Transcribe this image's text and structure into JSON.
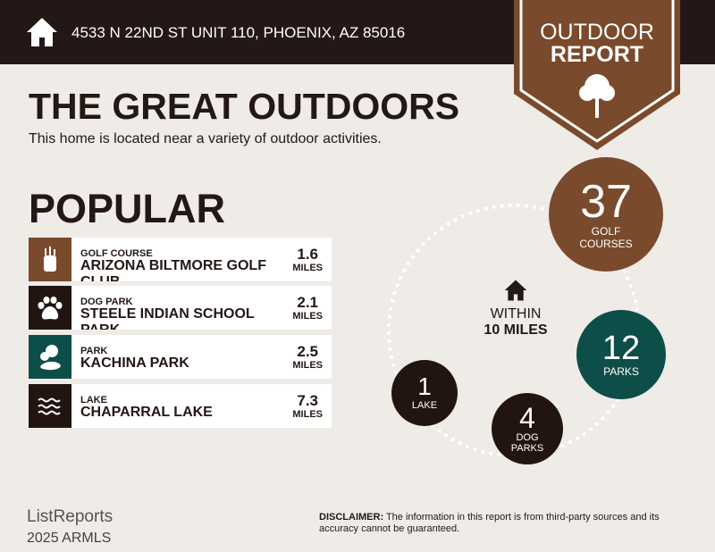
{
  "header": {
    "address": "4533 N 22ND ST UNIT 110, PHOENIX, AZ 85016",
    "icon": "home-icon"
  },
  "badge": {
    "line1": "OUTDOOR",
    "line2": "REPORT",
    "icon": "tree-icon"
  },
  "title": "THE GREAT OUTDOORS",
  "subtitle": "This home is located near a variety of outdoor activities.",
  "popular": {
    "heading": "POPULAR",
    "items": [
      {
        "category": "GOLF COURSE",
        "name": "ARIZONA BILTMORE GOLF CLUB",
        "distance": "1.6",
        "unit": "MILES",
        "icon": "golf-bag-icon",
        "color": "#7a4a2c"
      },
      {
        "category": "DOG PARK",
        "name": "STEELE INDIAN SCHOOL PARK",
        "distance": "2.1",
        "unit": "MILES",
        "icon": "paw-icon",
        "color": "#221511"
      },
      {
        "category": "PARK",
        "name": "KACHINA PARK",
        "distance": "2.5",
        "unit": "MILES",
        "icon": "trees-icon",
        "color": "#0e4e49"
      },
      {
        "category": "LAKE",
        "name": "CHAPARRAL LAKE",
        "distance": "7.3",
        "unit": "MILES",
        "icon": "waves-icon",
        "color": "#221511"
      }
    ]
  },
  "summary": {
    "within": "WITHIN",
    "radius": "10 MILES",
    "counts": [
      {
        "count": "37",
        "label": "GOLF COURSES",
        "color": "#7a4a2c"
      },
      {
        "count": "12",
        "label": "PARKS",
        "color": "#0e4e49"
      },
      {
        "count": "4",
        "label": "DOG PARKS",
        "color": "#221511"
      },
      {
        "count": "1",
        "label": "LAKE",
        "color": "#221511"
      }
    ]
  },
  "footer": {
    "logo": "ListReports",
    "watermark": "2025 ARMLS",
    "disclaimer_label": "DISCLAIMER:",
    "disclaimer": " The information in this report is from third-party sources and its accuracy cannot be guaranteed."
  }
}
